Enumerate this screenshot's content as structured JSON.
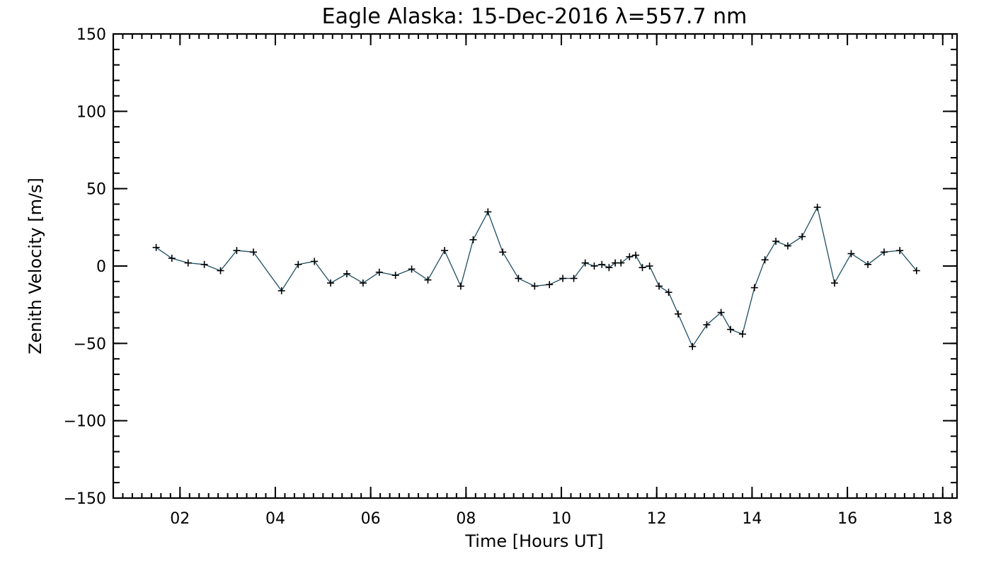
{
  "chart_data": {
    "type": "line",
    "title": "Eagle Alaska: 15-Dec-2016 λ=557.7 nm",
    "xlabel": "Time [Hours UT]",
    "ylabel": "Zenith Velocity [m/s]",
    "xlim": [
      0.6,
      18.3
    ],
    "ylim": [
      -150,
      150
    ],
    "xticks": [
      2,
      4,
      6,
      8,
      10,
      12,
      14,
      16,
      18
    ],
    "xtick_labels": [
      "02",
      "04",
      "06",
      "08",
      "10",
      "12",
      "14",
      "16",
      "18"
    ],
    "yticks": [
      -150,
      -100,
      -50,
      0,
      50,
      100,
      150
    ],
    "ytick_labels": [
      "−150",
      "−100",
      "−50",
      "0",
      "50",
      "100",
      "150"
    ],
    "x_minor_step": 0.2,
    "y_minor_step": 10,
    "grid": false,
    "line_color": "#1f4e63",
    "marker": "+",
    "series": [
      {
        "x": [
          1.5,
          1.83,
          2.17,
          2.51,
          2.85,
          3.19,
          3.54,
          4.13,
          4.48,
          4.82,
          5.16,
          5.5,
          5.84,
          6.18,
          6.52,
          6.86,
          7.2,
          7.55,
          7.89,
          8.15,
          8.46,
          8.77,
          9.1,
          9.44,
          9.75,
          10.03,
          10.26,
          10.5,
          10.69,
          10.85,
          11.0,
          11.13,
          11.25,
          11.43,
          11.56,
          11.7,
          11.85,
          12.05,
          12.25,
          12.45,
          12.75,
          13.05,
          13.35,
          13.55,
          13.8,
          14.05,
          14.27,
          14.5,
          14.75,
          15.05,
          15.37,
          15.73,
          16.08,
          16.43,
          16.77,
          17.1,
          17.45
        ],
        "y": [
          12,
          5,
          2,
          1,
          -3,
          10,
          9,
          -16,
          1,
          3,
          -11,
          -5,
          -11,
          -4,
          -6,
          -2,
          -9,
          10,
          -13,
          17,
          35,
          9,
          -8,
          -13,
          -12,
          -8,
          -8,
          2,
          0,
          1,
          -1,
          2,
          2,
          6,
          7,
          -1,
          0,
          -13,
          -17,
          -31,
          -52,
          -38,
          -30,
          -41,
          -44,
          -14,
          4,
          16,
          13,
          19,
          38,
          -11,
          8,
          1,
          9,
          10,
          -3
        ]
      }
    ]
  }
}
